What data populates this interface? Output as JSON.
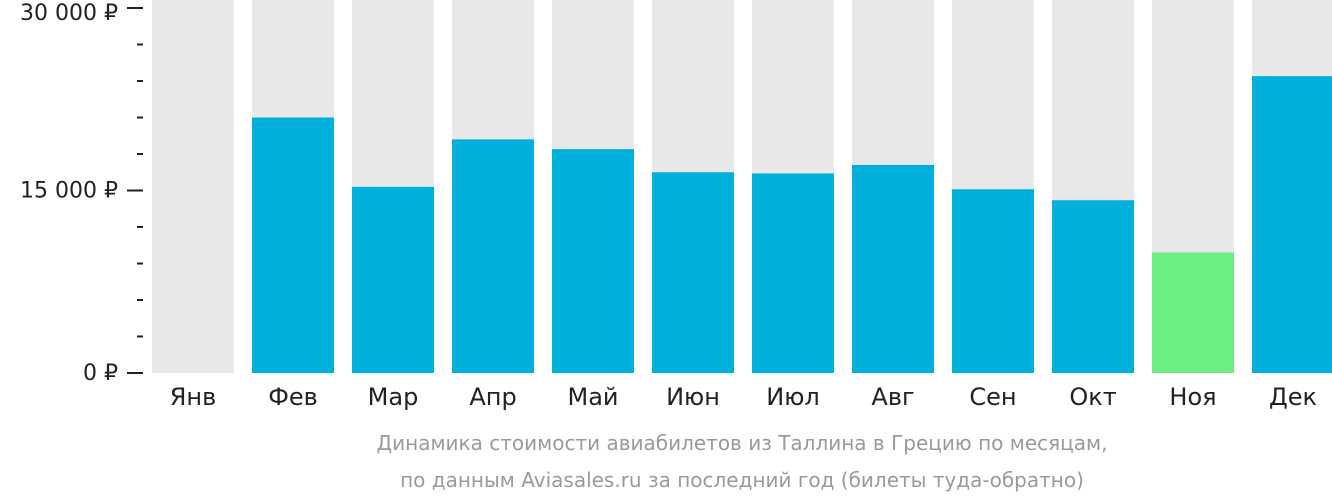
{
  "chart_data": {
    "type": "bar",
    "categories": [
      "Янв",
      "Фев",
      "Мар",
      "Апр",
      "Май",
      "Июн",
      "Июл",
      "Авг",
      "Сен",
      "Окт",
      "Ноя",
      "Дек"
    ],
    "values": [
      null,
      21000,
      15300,
      19200,
      18400,
      16500,
      16400,
      17100,
      15100,
      14200,
      9900,
      24400
    ],
    "highlight_index": 10,
    "ylim": [
      0,
      30000
    ],
    "yticks": [
      {
        "value": 0,
        "label": "0 ₽"
      },
      {
        "value": 15000,
        "label": "15 000 ₽"
      },
      {
        "value": 30000,
        "label": "30 000 ₽"
      }
    ],
    "minor_ticks": [
      3000,
      6000,
      9000,
      12000,
      18000,
      21000,
      24000,
      27000
    ],
    "caption": [
      "Динамика стоимости авиабилетов из Таллина в Грецию по месяцам,",
      "по данным Aviasales.ru за последний год (билеты туда-обратно)"
    ],
    "colors": {
      "bar": "#00b0dc",
      "highlight": "#6bef85",
      "track": "#e8e8e8",
      "axis": "#222222",
      "caption": "#9a9a9a"
    }
  }
}
